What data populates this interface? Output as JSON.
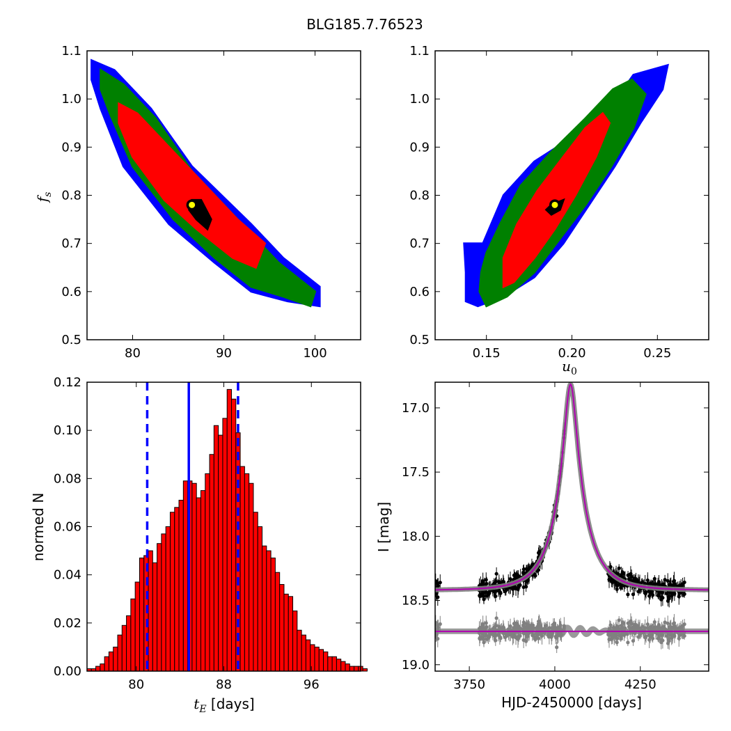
{
  "figure": {
    "title": "BLG185.7.76523"
  },
  "colors": {
    "sigma1": "#ff0000",
    "sigma2": "#008000",
    "sigma3": "#0000ff",
    "best": "#000000",
    "marker_fill": "#ffff00",
    "hist_fill": "#ff0000",
    "hist_edge": "#000000",
    "hist_lines": "#0000ff",
    "model": "#b100b1",
    "model_band": "#808080",
    "data": "#000000",
    "residuals": "#808080"
  },
  "chart_data": [
    {
      "id": "ax1",
      "type": "heatmap",
      "xlabel": "",
      "ylabel": "f_s",
      "xlim": [
        75,
        105
      ],
      "ylim": [
        0.5,
        1.1
      ],
      "xticks": [
        80,
        90,
        100
      ],
      "xtick_labels": [
        "80",
        "90",
        "100"
      ],
      "yticks": [
        0.5,
        0.6,
        0.7,
        0.8,
        0.9,
        1.0,
        1.1
      ],
      "ytick_labels": [
        "0.5",
        "0.6",
        "0.7",
        "0.8",
        "0.9",
        "1.0",
        "1.1"
      ],
      "best_fit": {
        "x": 86.5,
        "y": 0.78
      },
      "regions": [
        {
          "level": "3sigma",
          "color": "sigma3",
          "polygon": [
            [
              75.5,
              1.08
            ],
            [
              78.0,
              1.06
            ],
            [
              82.0,
              0.98
            ],
            [
              86.5,
              0.86
            ],
            [
              93.0,
              0.74
            ],
            [
              96.5,
              0.67
            ],
            [
              100.5,
              0.61
            ],
            [
              100.5,
              0.57
            ],
            [
              97.0,
              0.58
            ],
            [
              93.0,
              0.6
            ],
            [
              89.0,
              0.66
            ],
            [
              84.0,
              0.74
            ],
            [
              79.0,
              0.86
            ],
            [
              76.5,
              0.98
            ],
            [
              75.5,
              1.04
            ]
          ]
        },
        {
          "level": "2sigma",
          "color": "sigma2",
          "polygon": [
            [
              76.5,
              1.06
            ],
            [
              79.0,
              1.03
            ],
            [
              82.5,
              0.96
            ],
            [
              86.5,
              0.85
            ],
            [
              92.0,
              0.74
            ],
            [
              96.0,
              0.66
            ],
            [
              100.0,
              0.6
            ],
            [
              99.5,
              0.57
            ],
            [
              96.5,
              0.59
            ],
            [
              93.0,
              0.61
            ],
            [
              89.0,
              0.67
            ],
            [
              84.5,
              0.75
            ],
            [
              80.0,
              0.86
            ],
            [
              77.5,
              0.97
            ],
            [
              76.5,
              1.02
            ]
          ]
        },
        {
          "level": "1sigma",
          "color": "sigma1",
          "polygon": [
            [
              78.5,
              0.99
            ],
            [
              80.5,
              0.97
            ],
            [
              83.5,
              0.91
            ],
            [
              87.5,
              0.83
            ],
            [
              91.5,
              0.75
            ],
            [
              94.5,
              0.7
            ],
            [
              93.5,
              0.65
            ],
            [
              91.0,
              0.67
            ],
            [
              87.0,
              0.73
            ],
            [
              83.5,
              0.79
            ],
            [
              80.0,
              0.88
            ],
            [
              78.5,
              0.95
            ]
          ]
        },
        {
          "level": "best",
          "color": "best",
          "polygon": [
            [
              86.5,
              0.79
            ],
            [
              87.5,
              0.79
            ],
            [
              88.6,
              0.75
            ],
            [
              88.2,
              0.73
            ],
            [
              87.0,
              0.75
            ],
            [
              86.2,
              0.77
            ]
          ]
        }
      ]
    },
    {
      "id": "ax2",
      "type": "heatmap",
      "xlabel": "u_0",
      "ylabel": "",
      "xlim": [
        0.12,
        0.28
      ],
      "ylim": [
        0.5,
        1.1
      ],
      "xticks": [
        0.15,
        0.2,
        0.25
      ],
      "xtick_labels": [
        "0.15",
        "0.20",
        "0.25"
      ],
      "yticks": [
        0.5,
        0.6,
        0.7,
        0.8,
        0.9,
        1.0,
        1.1
      ],
      "ytick_labels": [
        "0.5",
        "0.6",
        "0.7",
        "0.8",
        "0.9",
        "1.0",
        "1.1"
      ],
      "best_fit": {
        "x": 0.19,
        "y": 0.78
      },
      "regions": [
        {
          "level": "3sigma",
          "color": "sigma3",
          "polygon": [
            [
              0.137,
              0.7
            ],
            [
              0.148,
              0.7
            ],
            [
              0.16,
              0.8
            ],
            [
              0.178,
              0.87
            ],
            [
              0.2,
              0.92
            ],
            [
              0.222,
              0.98
            ],
            [
              0.236,
              1.05
            ],
            [
              0.256,
              1.07
            ],
            [
              0.253,
              1.02
            ],
            [
              0.24,
              0.95
            ],
            [
              0.225,
              0.86
            ],
            [
              0.21,
              0.78
            ],
            [
              0.195,
              0.7
            ],
            [
              0.178,
              0.63
            ],
            [
              0.16,
              0.59
            ],
            [
              0.145,
              0.57
            ],
            [
              0.138,
              0.58
            ],
            [
              0.138,
              0.64
            ]
          ]
        },
        {
          "level": "2sigma",
          "color": "sigma2",
          "polygon": [
            [
              0.15,
              0.68
            ],
            [
              0.158,
              0.74
            ],
            [
              0.17,
              0.82
            ],
            [
              0.188,
              0.89
            ],
            [
              0.208,
              0.96
            ],
            [
              0.224,
              1.02
            ],
            [
              0.235,
              1.04
            ],
            [
              0.243,
              1.01
            ],
            [
              0.236,
              0.94
            ],
            [
              0.223,
              0.86
            ],
            [
              0.208,
              0.78
            ],
            [
              0.193,
              0.71
            ],
            [
              0.178,
              0.64
            ],
            [
              0.162,
              0.59
            ],
            [
              0.15,
              0.57
            ],
            [
              0.146,
              0.6
            ],
            [
              0.147,
              0.64
            ]
          ]
        },
        {
          "level": "1sigma",
          "color": "sigma1",
          "polygon": [
            [
              0.16,
              0.67
            ],
            [
              0.168,
              0.74
            ],
            [
              0.18,
              0.81
            ],
            [
              0.195,
              0.88
            ],
            [
              0.208,
              0.94
            ],
            [
              0.218,
              0.97
            ],
            [
              0.222,
              0.95
            ],
            [
              0.214,
              0.88
            ],
            [
              0.202,
              0.8
            ],
            [
              0.19,
              0.73
            ],
            [
              0.178,
              0.67
            ],
            [
              0.166,
              0.62
            ],
            [
              0.16,
              0.61
            ]
          ]
        },
        {
          "level": "best",
          "color": "best",
          "polygon": [
            [
              0.185,
              0.77
            ],
            [
              0.188,
              0.78
            ],
            [
              0.195,
              0.79
            ],
            [
              0.193,
              0.77
            ],
            [
              0.188,
              0.76
            ]
          ]
        }
      ]
    },
    {
      "id": "ax3",
      "type": "bar",
      "xlabel": "t_E [days]",
      "ylabel": "normed N",
      "xlim": [
        75.5,
        100.5
      ],
      "ylim": [
        0,
        0.12
      ],
      "xticks": [
        80,
        88,
        96
      ],
      "xtick_labels": [
        "80",
        "88",
        "96"
      ],
      "yticks": [
        0,
        0.02,
        0.04,
        0.06,
        0.08,
        0.1,
        0.12
      ],
      "ytick_labels": [
        "0.00",
        "0.02",
        "0.04",
        "0.06",
        "0.08",
        "0.10",
        "0.12"
      ],
      "bin_start": 75.5,
      "bin_width": 0.4,
      "values": [
        0.001,
        0.001,
        0.002,
        0.003,
        0.006,
        0.008,
        0.01,
        0.015,
        0.019,
        0.023,
        0.03,
        0.037,
        0.047,
        0.048,
        0.05,
        0.045,
        0.053,
        0.057,
        0.06,
        0.066,
        0.068,
        0.071,
        0.079,
        0.079,
        0.078,
        0.072,
        0.075,
        0.082,
        0.09,
        0.102,
        0.098,
        0.105,
        0.117,
        0.113,
        0.099,
        0.085,
        0.082,
        0.078,
        0.066,
        0.06,
        0.052,
        0.05,
        0.047,
        0.041,
        0.036,
        0.032,
        0.031,
        0.025,
        0.017,
        0.015,
        0.013,
        0.011,
        0.01,
        0.009,
        0.008,
        0.006,
        0.006,
        0.005,
        0.004,
        0.003,
        0.002,
        0.002,
        0.002,
        0.001
      ],
      "vlines": [
        {
          "x": 84.8,
          "style": "solid",
          "color": "hist_lines"
        },
        {
          "x": 81.0,
          "style": "dashed",
          "color": "hist_lines"
        },
        {
          "x": 89.3,
          "style": "dashed",
          "color": "hist_lines"
        }
      ]
    },
    {
      "id": "ax4",
      "type": "scatter",
      "xlabel": "HJD-2450000 [days]",
      "ylabel": "I [mag]",
      "xlim": [
        3650,
        4450
      ],
      "ylim": [
        19.05,
        16.8
      ],
      "y_inverted": true,
      "xticks": [
        3750,
        4000,
        4250
      ],
      "xtick_labels": [
        "3750",
        "4000",
        "4250"
      ],
      "yticks": [
        17.0,
        17.5,
        18.0,
        18.5,
        19.0
      ],
      "ytick_labels": [
        "17.0",
        "17.5",
        "18.0",
        "18.5",
        "19.0"
      ],
      "model": {
        "t0": 4046,
        "tE": 86.5,
        "u0": 0.19,
        "baseline_mag": 18.42,
        "fs": 0.78
      },
      "residual_baseline_mag": 18.74,
      "observing_seasons": [
        [
          3650,
          3665
        ],
        [
          3778,
          4030
        ],
        [
          4155,
          4380
        ]
      ]
    }
  ]
}
